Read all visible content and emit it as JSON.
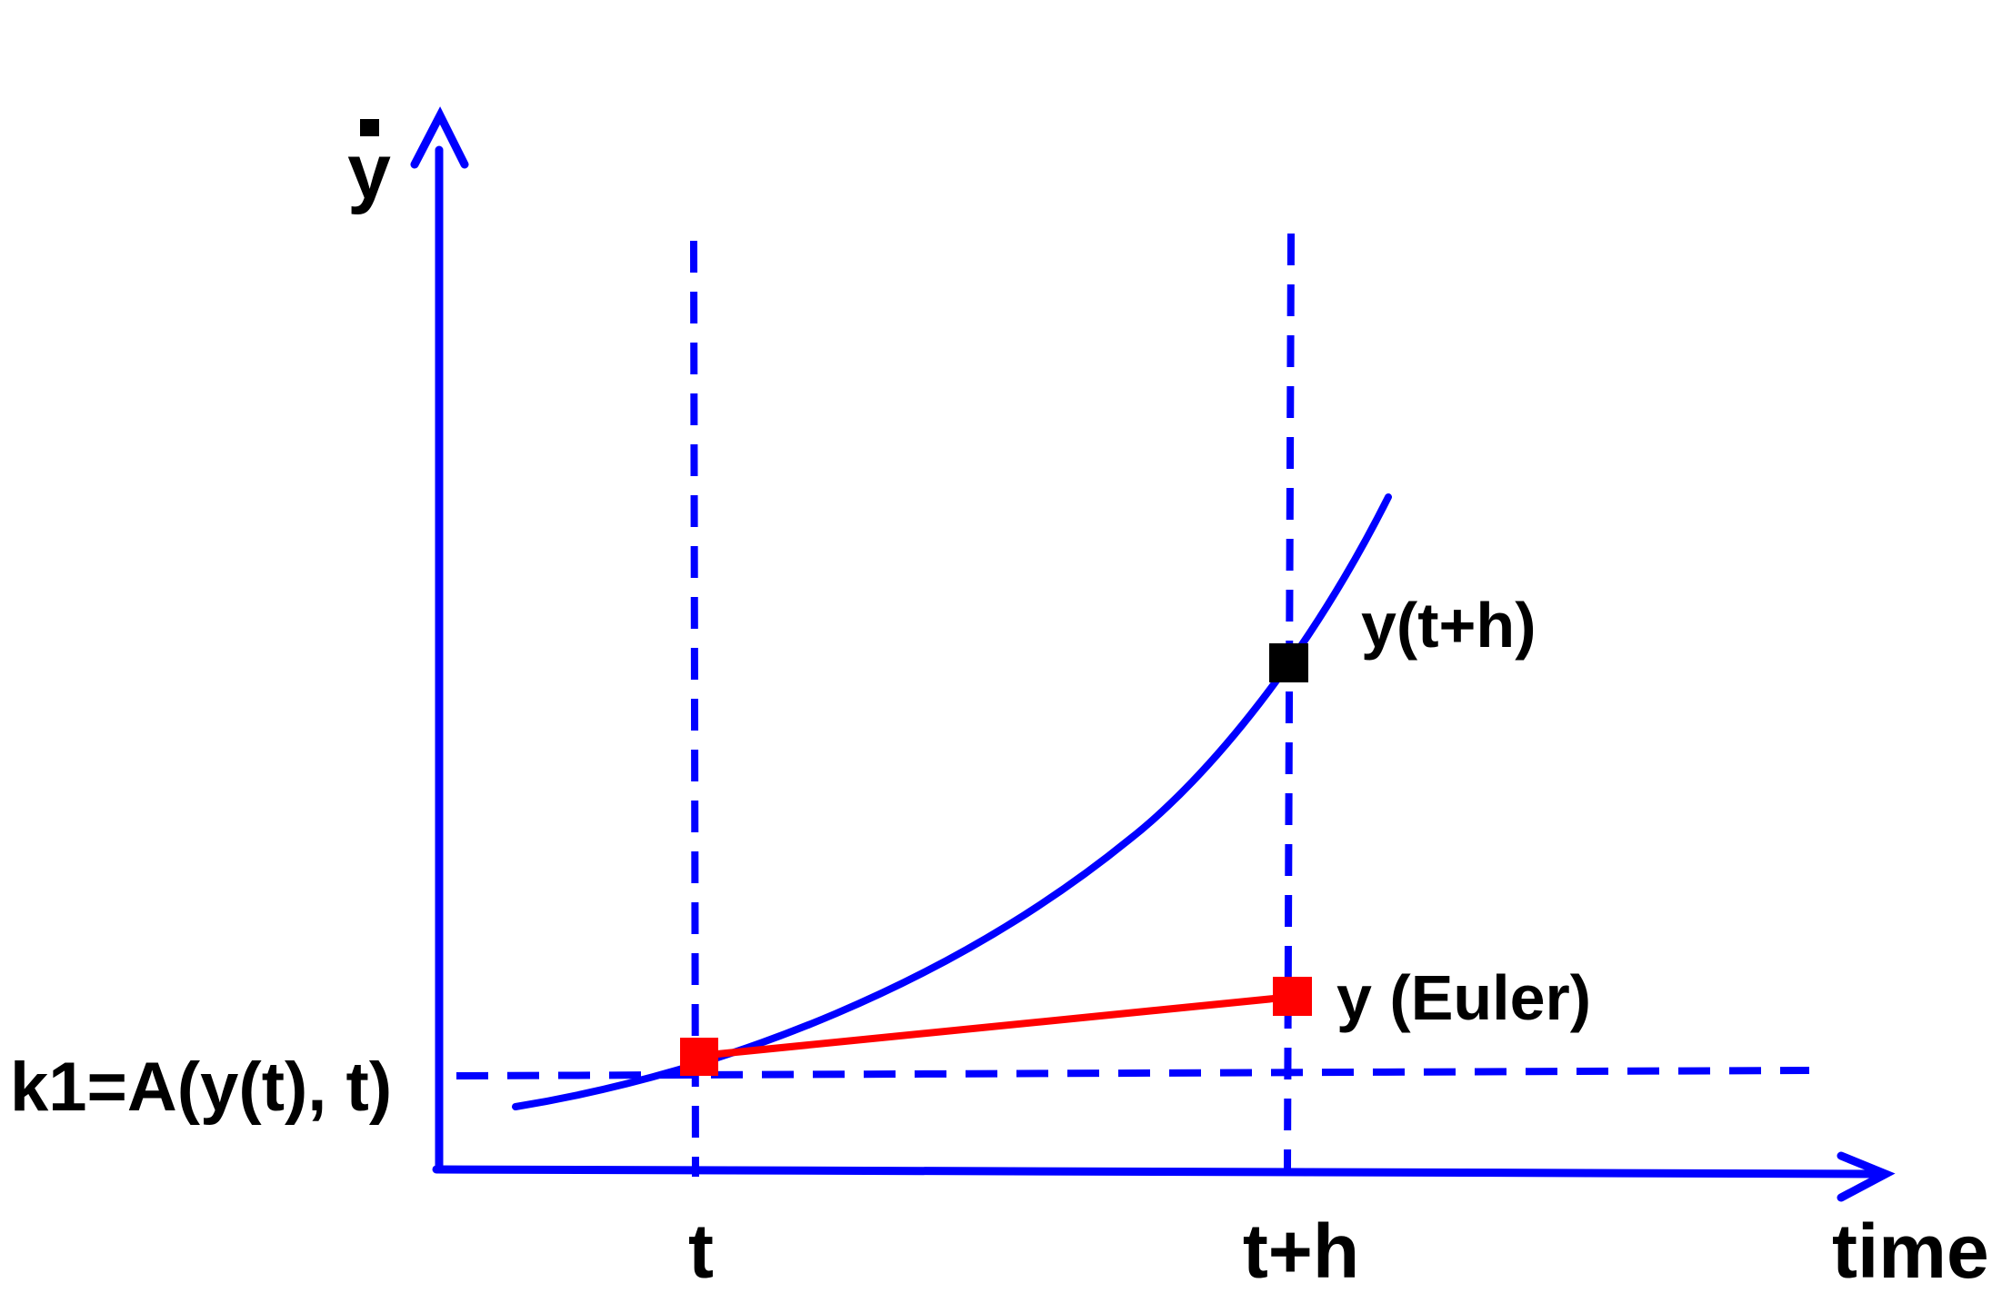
{
  "axes": {
    "y_label": "y",
    "x_label": "time"
  },
  "labels": {
    "k1": "k1=A(y(t), t)",
    "t": "t",
    "t_plus_h": "t+h",
    "exact": "y(t+h)",
    "euler": "y (Euler)"
  }
}
